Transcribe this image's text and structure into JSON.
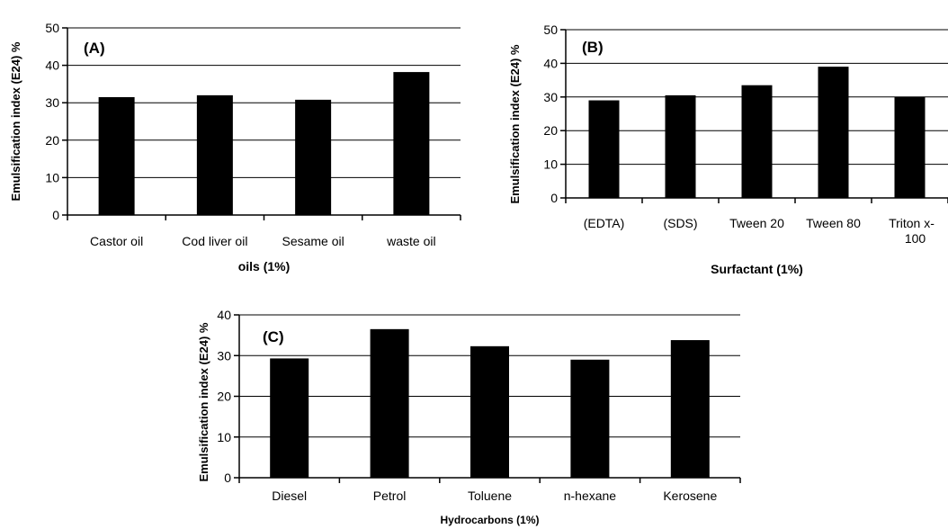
{
  "chart_data": [
    {
      "type": "bar",
      "panel_label": "(A)",
      "categories": [
        "Castor oil",
        "Cod liver oil",
        "Sesame oil",
        "waste  oil"
      ],
      "values": [
        31.5,
        32,
        30.8,
        38.2
      ],
      "xlabel": "oils (1%)",
      "ylabel": "Emulsification index (E24) %",
      "ylim": [
        0,
        50
      ],
      "yticks": [
        0,
        10,
        20,
        30,
        40,
        50
      ],
      "grid": true,
      "bar_color": "#000000"
    },
    {
      "type": "bar",
      "panel_label": "(B)",
      "categories": [
        "(EDTA)",
        "(SDS)",
        "Tween 20",
        "Tween 80",
        "Triton x-100"
      ],
      "values": [
        29,
        30.5,
        33.5,
        39,
        30
      ],
      "xlabel": "Surfactant (1%)",
      "ylabel": "Emulsification index (E24) %",
      "ylim": [
        0,
        50
      ],
      "yticks": [
        0,
        10,
        20,
        30,
        40,
        50
      ],
      "grid": true,
      "bar_color": "#000000"
    },
    {
      "type": "bar",
      "panel_label": "(C)",
      "categories": [
        "Diesel",
        "Petrol",
        "Toluene",
        "n-hexane",
        "Kerosene"
      ],
      "values": [
        29.3,
        36.5,
        32.3,
        29,
        33.8
      ],
      "xlabel": "Hydrocarbons (1%)",
      "ylabel": "Emulsification index (E24) %",
      "ylim": [
        0,
        40
      ],
      "yticks": [
        0,
        10,
        20,
        30,
        40
      ],
      "grid": true,
      "bar_color": "#000000"
    }
  ]
}
